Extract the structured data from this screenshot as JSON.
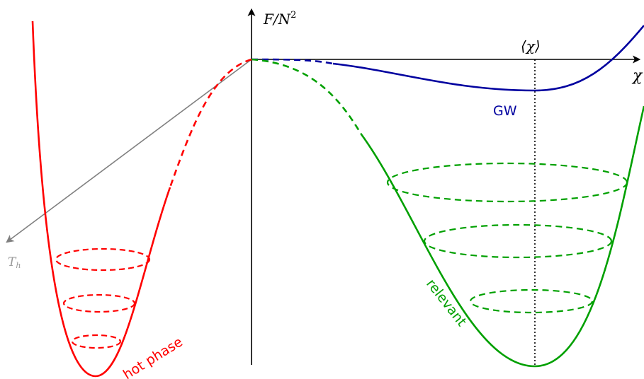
{
  "labels": {
    "y_axis": "F/N",
    "y_axis_exponent": "2",
    "x_axis": "χ",
    "expectation": "⟨χ⟩",
    "th_axis_main": "T",
    "th_axis_sub": "h",
    "gw": "GW",
    "relevant": "relevant",
    "hot_phase": "hot phase"
  },
  "colors": {
    "axis": "#000000",
    "th_axis": "#808080",
    "gw_curve": "#00009f",
    "relevant_curve": "#00a000",
    "hot_curve": "#ff0000"
  }
}
